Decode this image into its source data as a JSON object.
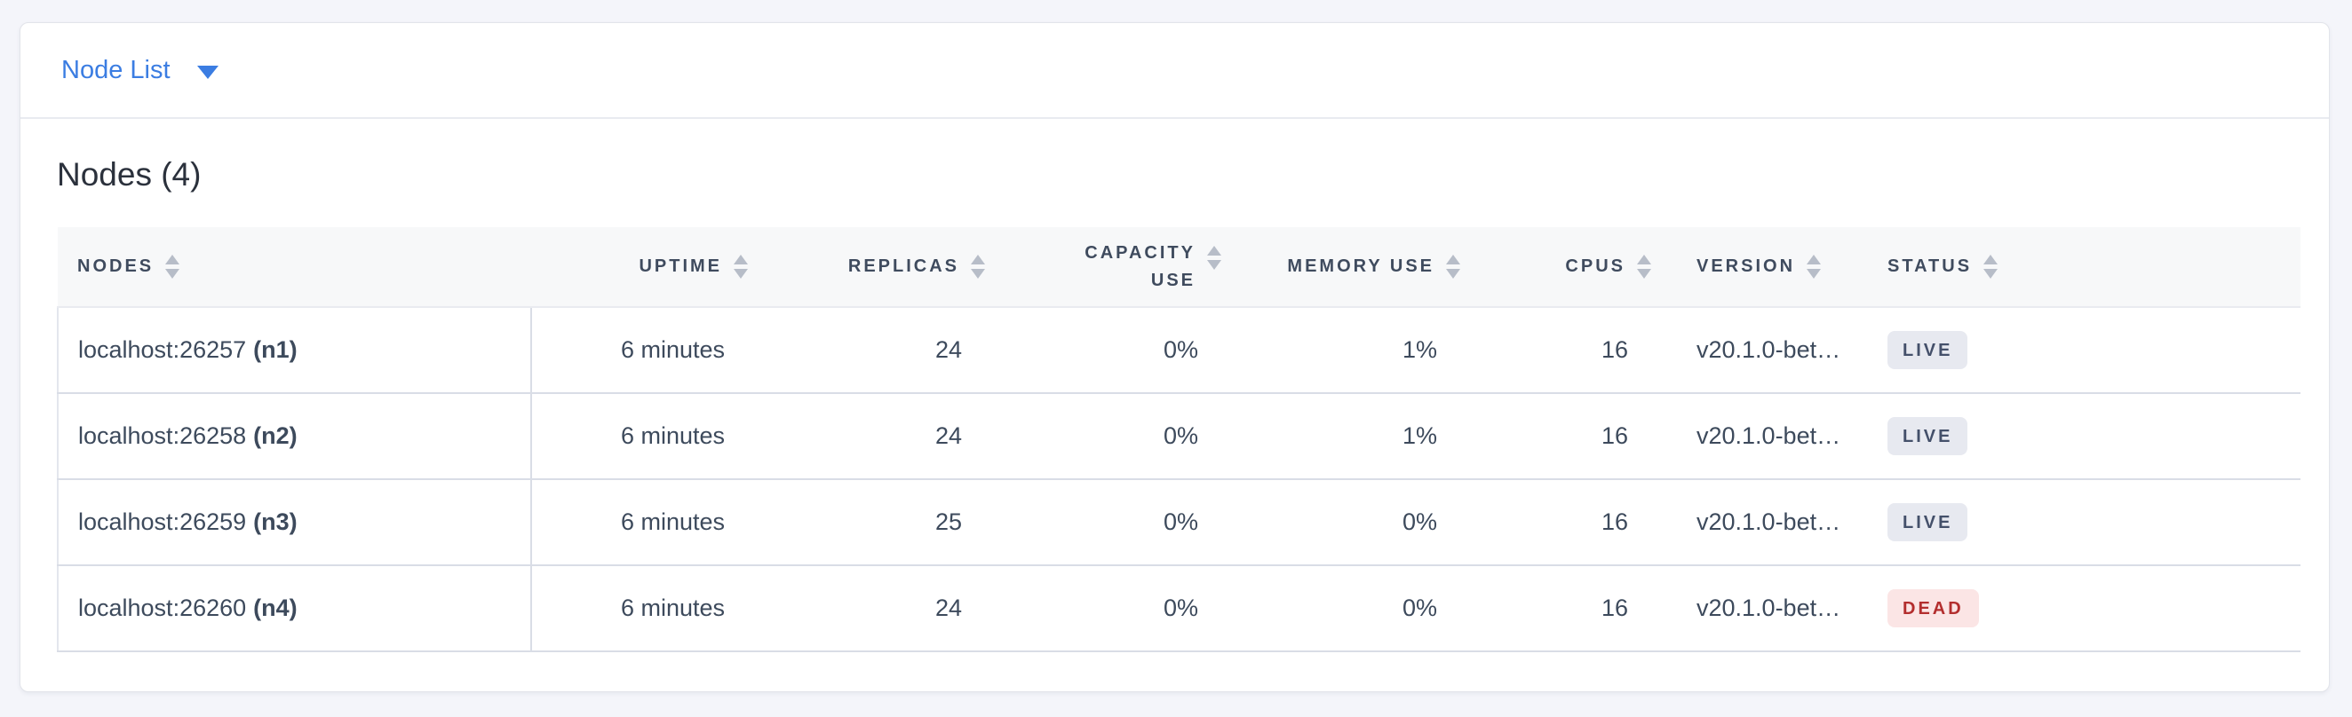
{
  "dropdown": {
    "label": "Node List",
    "caret_icon": "caret-down"
  },
  "page": {
    "title": "Nodes (4)"
  },
  "table": {
    "sort_icon": "up-down-triangles",
    "columns": [
      {
        "key": "nodes",
        "label": "NODES",
        "align": "left"
      },
      {
        "key": "uptime",
        "label": "UPTIME",
        "align": "right"
      },
      {
        "key": "replicas",
        "label": "REPLICAS",
        "align": "right"
      },
      {
        "key": "capacity_use",
        "label": "CAPACITY USE",
        "align": "right"
      },
      {
        "key": "memory_use",
        "label": "MEMORY USE",
        "align": "right"
      },
      {
        "key": "cpus",
        "label": "CPUS",
        "align": "right"
      },
      {
        "key": "version",
        "label": "VERSION",
        "align": "left"
      },
      {
        "key": "status",
        "label": "STATUS",
        "align": "left"
      }
    ],
    "rows": [
      {
        "node_host": "localhost:26257",
        "node_id": "(n1)",
        "uptime": "6 minutes",
        "replicas": "24",
        "capacity_use": "0%",
        "memory_use": "1%",
        "cpus": "16",
        "version": "v20.1.0-bet…",
        "status": "LIVE"
      },
      {
        "node_host": "localhost:26258",
        "node_id": "(n2)",
        "uptime": "6 minutes",
        "replicas": "24",
        "capacity_use": "0%",
        "memory_use": "1%",
        "cpus": "16",
        "version": "v20.1.0-bet…",
        "status": "LIVE"
      },
      {
        "node_host": "localhost:26259",
        "node_id": "(n3)",
        "uptime": "6 minutes",
        "replicas": "25",
        "capacity_use": "0%",
        "memory_use": "0%",
        "cpus": "16",
        "version": "v20.1.0-bet…",
        "status": "LIVE"
      },
      {
        "node_host": "localhost:26260",
        "node_id": "(n4)",
        "uptime": "6 minutes",
        "replicas": "24",
        "capacity_use": "0%",
        "memory_use": "0%",
        "cpus": "16",
        "version": "v20.1.0-bet…",
        "status": "DEAD"
      }
    ]
  },
  "colors": {
    "accent_blue": "#3b7de2",
    "page_background": "#f4f5fa",
    "header_text": "#3f4b5e",
    "row_text": "#3d4a5c",
    "live_badge_bg": "#e7e9f0",
    "live_badge_text": "#44506a",
    "dead_badge_bg": "#fbe5e5",
    "dead_badge_text": "#b32e2e"
  }
}
